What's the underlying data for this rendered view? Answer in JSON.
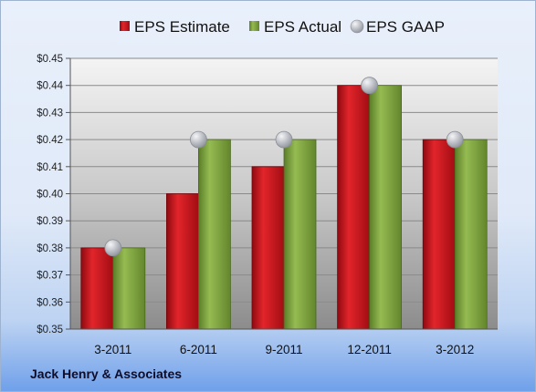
{
  "chart_data": {
    "type": "bar",
    "title": "",
    "xlabel": "",
    "ylabel": "",
    "categories": [
      "3-2011",
      "6-2011",
      "9-2011",
      "12-2011",
      "3-2012"
    ],
    "series": [
      {
        "name": "EPS Estimate",
        "type": "bar",
        "color": "#c8131b",
        "values": [
          0.38,
          0.4,
          0.41,
          0.44,
          0.42
        ]
      },
      {
        "name": "EPS Actual",
        "type": "bar",
        "color": "#7da23c",
        "values": [
          0.38,
          0.42,
          0.42,
          0.44,
          0.42
        ]
      },
      {
        "name": "EPS GAAP",
        "type": "scatter",
        "color": "#b9bcc2",
        "values": [
          0.38,
          0.42,
          0.42,
          0.44,
          0.42
        ]
      }
    ],
    "ylim": [
      0.35,
      0.45
    ],
    "yticks": [
      "$0.35",
      "$0.36",
      "$0.37",
      "$0.38",
      "$0.39",
      "$0.40",
      "$0.41",
      "$0.42",
      "$0.43",
      "$0.44",
      "$0.45"
    ],
    "grid": true,
    "legend_position": "top"
  },
  "footer": {
    "company": "Jack Henry & Associates"
  }
}
